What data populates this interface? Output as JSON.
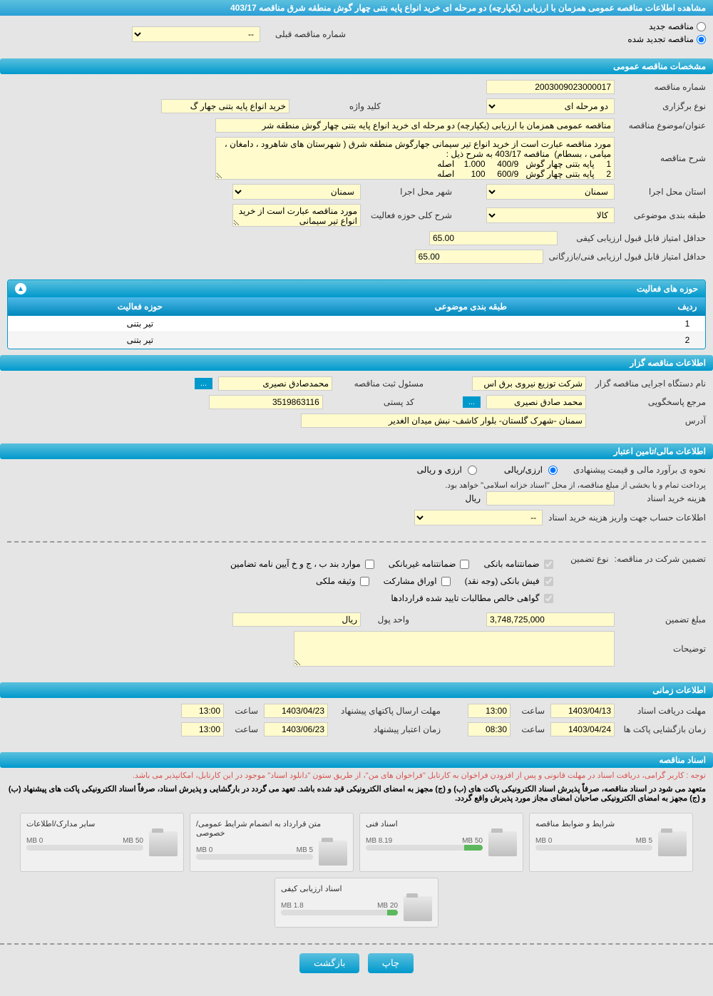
{
  "header": {
    "title": "مشاهده اطلاعات مناقصه عمومی همزمان با ارزیابی (یکپارچه) دو مرحله ای خرید انواع پایه بتنی چهار گوش منطقه شرق مناقصه 403/17"
  },
  "radioOptions": {
    "new": "مناقصه جدید",
    "renewed": "مناقصه تجدید شده",
    "prevLabel": "شماره مناقصه قبلی",
    "prevValue": "--"
  },
  "section1": {
    "title": "مشخصات مناقصه عمومی",
    "fields": {
      "tenderNumLabel": "شماره مناقصه",
      "tenderNum": "2003009023000017",
      "typeLabel": "نوع برگزاری",
      "type": "دو مرحله ای",
      "keywordLabel": "کلید واژه",
      "keyword": "خرید انواع پایه بتنی جهار گ",
      "subjectLabel": "عنوان/موضوع مناقصه",
      "subject": "مناقصه عمومی همزمان با ارزیابی (یکپارچه) دو مرحله ای خرید انواع پایه بتنی چهار گوش منطقه شر",
      "descLabel": "شرح مناقصه",
      "desc": "مورد مناقصه عبارت است از خرید انواع تیر سیمانی جهارگوش منطقه شرق ( شهرستان های شاهرود ، دامغان ، میامی ، بسطام)  مناقصه 403/17 به شرح ذیل :\n1     پایه بتنی چهار گوش   400/9     1.000    اصله\n2     پایه بتنی چهار گوش   600/9     100       اصله",
      "provinceLabel": "استان محل اجرا",
      "province": "سمنان",
      "cityLabel": "شهر محل اجرا",
      "city": "سمنان",
      "categoryLabel": "طبقه بندی موضوعی",
      "category": "کالا",
      "activityDescLabel": "شرح کلی حوزه فعالیت",
      "activityDesc": "مورد مناقصه عبارت است از خرید انواع تیر سیمانی",
      "qualityScoreLabel": "حداقل امتیاز قابل قبول ارزیابی کیفی",
      "qualityScore": "65.00",
      "techScoreLabel": "حداقل امتیاز قابل قبول ارزیابی فنی/بازرگانی",
      "techScore": "65.00"
    }
  },
  "activityTable": {
    "title": "حوزه های فعالیت",
    "headers": {
      "row": "ردیف",
      "category": "طبقه بندی موضوعی",
      "field": "حوزه فعالیت"
    },
    "rows": [
      {
        "num": "1",
        "category": "",
        "field": "تیر بتنی"
      },
      {
        "num": "2",
        "category": "",
        "field": "تیر بتنی"
      }
    ]
  },
  "section2": {
    "title": "اطلاعات مناقصه گزار",
    "fields": {
      "orgLabel": "نام دستگاه اجرایی مناقصه گزار",
      "org": "شرکت توزیع نیروی برق اس",
      "managerLabel": "مسئول ثبت مناقصه",
      "manager": "محمدصادق نصیری",
      "contactLabel": "مرجع پاسخگویی",
      "contact": "محمد صادق نصیری",
      "postalLabel": "کد پستی",
      "postal": "3519863116",
      "addressLabel": "آدرس",
      "address": "سمنان -شهرک گلستان- بلوار کاشف- نبش میدان الغدیر"
    }
  },
  "section3": {
    "title": "اطلاعات مالی/تامین اعتبار",
    "fields": {
      "estimateLabel": "نحوه ی برآورد مالی و قیمت پیشنهادی",
      "rialOption": "ارزی/ریالی",
      "currencyOption": "ارزی و ریالی",
      "paymentNote": "پرداخت تمام و یا بخشی از مبلغ مناقصه، از محل \"اسناد خزانه اسلامی\" خواهد بود.",
      "docCostLabel": "هزینه خرید اسناد",
      "docCost": "",
      "docCostUnit": "ریال",
      "accountLabel": "اطلاعات حساب جهت واریز هزینه خرید اسناد",
      "accountValue": "--"
    }
  },
  "guarantee": {
    "label": "تضمین شرکت در مناقصه:",
    "typeLabel": "نوع تضمین",
    "options": {
      "bank": "ضمانتنامه بانکی",
      "nonbank": "ضمانتنامه غیربانکی",
      "bylaw": "موارد بند ب ، ج و خ آیین نامه تضامین",
      "fish": "فیش بانکی (وجه نقد)",
      "stocks": "اوراق مشارکت",
      "property": "وثیقه ملکی",
      "certified": "گواهی خالص مطالبات تایید شده قراردادها"
    },
    "amountLabel": "مبلغ تضمین",
    "amount": "3,748,725,000",
    "unitLabel": "واحد پول",
    "unit": "ریال",
    "notesLabel": "توضیحات",
    "notes": ""
  },
  "section4": {
    "title": "اطلاعات زمانی",
    "fields": {
      "receiveLabel": "مهلت دریافت اسناد",
      "receiveDate": "1403/04/13",
      "receiveTimeLabel": "ساعت",
      "receiveTime": "13:00",
      "sendLabel": "مهلت ارسال پاکتهای پیشنهاد",
      "sendDate": "1403/04/23",
      "sendTimeLabel": "ساعت",
      "sendTime": "13:00",
      "openLabel": "زمان بازگشایی پاکت ها",
      "openDate": "1403/04/24",
      "openTimeLabel": "ساعت",
      "openTime": "08:30",
      "validLabel": "زمان اعتبار پیشنهاد",
      "validDate": "1403/06/23",
      "validTimeLabel": "ساعت",
      "validTime": "13:00"
    }
  },
  "section5": {
    "title": "اسناد مناقصه",
    "note1": "توجه : کاربر گرامی، دریافت اسناد در مهلت قانونی و پس از افزودن فراخوان به کارتابل \"فراخوان های من\"، از طریق ستون \"دانلود اسناد\" موجود در این کارتابل، امکانپذیر می باشد.",
    "note2": "متعهد می شود در اسناد مناقصه، صرفاً پذیرش اسناد الکترونیکی پاکت های (ب) و (ج) مجهز به امضای الکترونیکی قید شده باشد. تعهد می گردد در بارگشایی و پذیرش اسناد، صرفاً اسناد الکترونیکی پاکت های پیشنهاد (ب) و (ج) مجهز به امضای الکترونیکی صاحبان امضای مجاز مورد پذیرش واقع گردد.",
    "docs": [
      {
        "title": "شرایط و ضوابط مناقصه",
        "max": "5 MB",
        "used": "0 MB",
        "percent": 0
      },
      {
        "title": "اسناد فنی",
        "max": "50 MB",
        "used": "8.19 MB",
        "percent": 16
      },
      {
        "title": "متن قرارداد به انضمام شرایط عمومی/خصوصی",
        "max": "5 MB",
        "used": "0 MB",
        "percent": 0
      },
      {
        "title": "سایر مدارک/اطلاعات",
        "max": "50 MB",
        "used": "0 MB",
        "percent": 0
      },
      {
        "title": "اسناد ارزیابی کیفی",
        "max": "20 MB",
        "used": "1.8 MB",
        "percent": 9
      }
    ]
  },
  "buttons": {
    "print": "چاپ",
    "back": "بازگشت"
  },
  "colors": {
    "headerBg": "#0099cc",
    "inputBg": "#fffbcc",
    "pageBg": "#e5e5e5"
  }
}
